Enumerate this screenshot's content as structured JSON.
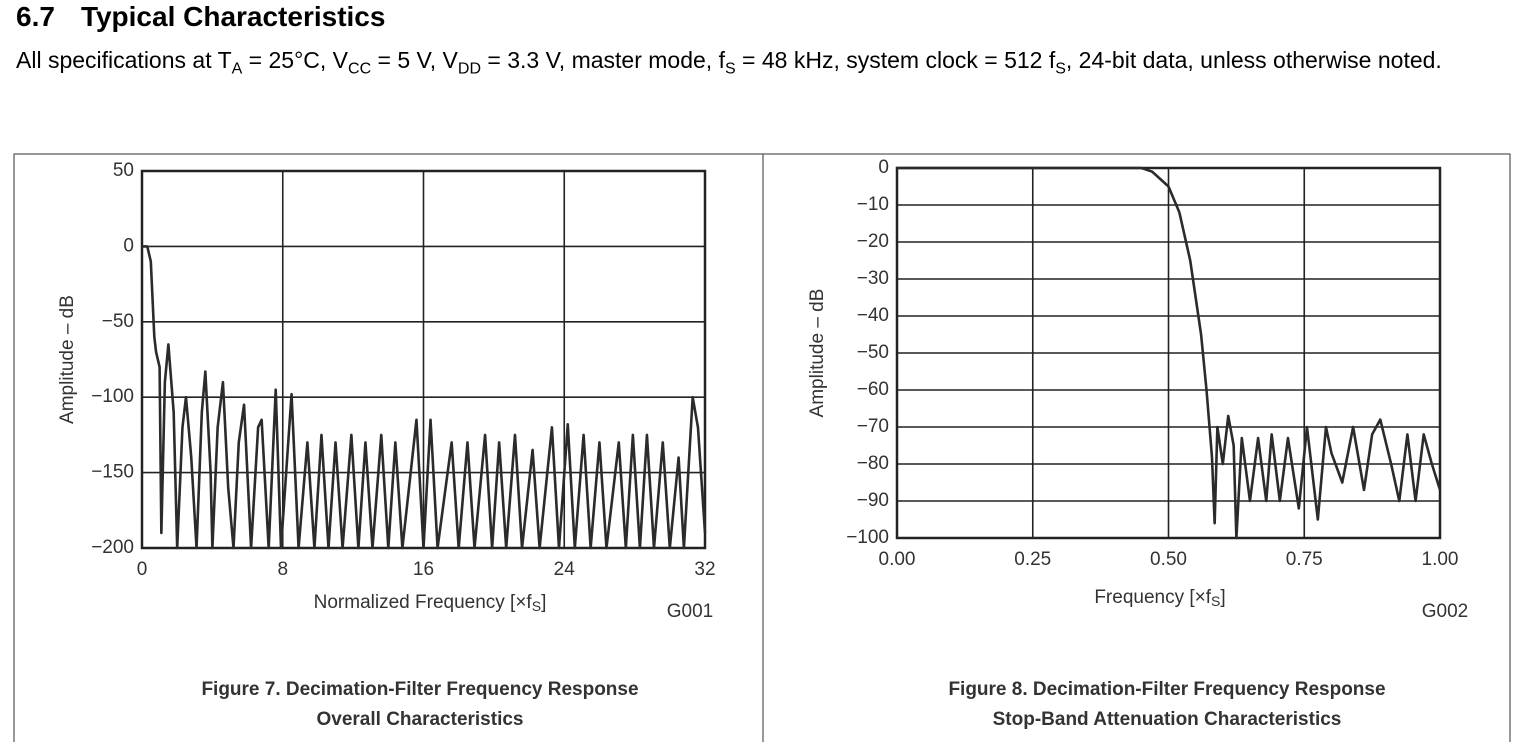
{
  "section": "6.7",
  "title": "Typical Characteristics",
  "intro": [
    {
      "text": "All specifications at T"
    },
    {
      "sub": "A"
    },
    {
      "text": " = 25°C, V"
    },
    {
      "sub": "CC"
    },
    {
      "text": " = 5 V, V"
    },
    {
      "sub": "DD"
    },
    {
      "text": " = 3.3 V, master mode, f"
    },
    {
      "sub": "S"
    },
    {
      "text": " = 48 kHz, system clock = 512 f"
    },
    {
      "sub": "S"
    },
    {
      "text": ", 24-bit data, unless otherwise noted."
    }
  ],
  "chart_data": [
    {
      "type": "line",
      "ylabel": "Amplitude – dB",
      "xlabel": [
        {
          "text": "Normalized Frequency [×f"
        },
        {
          "sub": "S"
        },
        {
          "text": "]"
        }
      ],
      "code": "G001",
      "caption": [
        "Figure 7. Decimation-Filter Frequency Response",
        "Overall Characteristics"
      ],
      "xlim": [
        0,
        32
      ],
      "xticks": [
        0,
        8,
        16,
        24,
        32
      ],
      "ylim": [
        -200,
        50
      ],
      "yticks": [
        {
          "value": 50,
          "label": "50"
        },
        {
          "value": 0,
          "label": "0"
        },
        {
          "value": -50,
          "label": "−50"
        },
        {
          "value": -100,
          "label": "−100"
        },
        {
          "value": -150,
          "label": "−150"
        },
        {
          "value": -200,
          "label": "−200"
        }
      ],
      "grid": true,
      "color": "#2b2b2b",
      "x": [
        0,
        0.3,
        0.5,
        0.7,
        0.8,
        1.0,
        1.1,
        1.3,
        1.5,
        1.8,
        2.0,
        2.3,
        2.5,
        2.8,
        3.1,
        3.4,
        3.6,
        3.9,
        4.0,
        4.3,
        4.6,
        4.9,
        5.2,
        5.5,
        5.8,
        6.2,
        6.6,
        6.8,
        7.2,
        7.6,
        7.9,
        8.5,
        8.9,
        9.4,
        9.8,
        10.2,
        10.6,
        11.0,
        11.4,
        11.9,
        12.3,
        12.7,
        13.1,
        13.6,
        14.0,
        14.4,
        14.8,
        15.6,
        16.0,
        16.4,
        16.8,
        17.6,
        18.0,
        18.5,
        18.9,
        19.5,
        19.9,
        20.3,
        20.7,
        21.2,
        21.6,
        22.2,
        22.6,
        23.3,
        23.7,
        24.2,
        24.6,
        25.1,
        25.5,
        26.0,
        26.4,
        27.1,
        27.5,
        27.9,
        28.3,
        28.7,
        29.1,
        29.6,
        30.0,
        30.5,
        30.8,
        31.3,
        31.6,
        32.0
      ],
      "values": [
        0,
        0,
        -10,
        -60,
        -70,
        -80,
        -190,
        -90,
        -65,
        -110,
        -200,
        -120,
        -100,
        -140,
        -200,
        -110,
        -83,
        -150,
        -200,
        -120,
        -90,
        -160,
        -200,
        -130,
        -105,
        -200,
        -120,
        -115,
        -200,
        -95,
        -200,
        -98,
        -200,
        -130,
        -200,
        -125,
        -200,
        -130,
        -200,
        -125,
        -200,
        -130,
        -200,
        -125,
        -200,
        -130,
        -200,
        -115,
        -200,
        -115,
        -200,
        -130,
        -200,
        -130,
        -200,
        -125,
        -200,
        -130,
        -200,
        -125,
        -200,
        -135,
        -200,
        -120,
        -200,
        -118,
        -200,
        -125,
        -200,
        -130,
        -200,
        -130,
        -200,
        -125,
        -200,
        -125,
        -200,
        -130,
        -200,
        -140,
        -200,
        -100,
        -120,
        -190
      ]
    },
    {
      "type": "line",
      "ylabel": "Amplitude – dB",
      "xlabel": [
        {
          "text": "Frequency [×f"
        },
        {
          "sub": "S"
        },
        {
          "text": "]"
        }
      ],
      "code": "G002",
      "caption": [
        "Figure 8. Decimation-Filter Frequency Response",
        "Stop-Band Attenuation Characteristics"
      ],
      "xlim": [
        0,
        1
      ],
      "xticks": [
        {
          "value": 0,
          "label": "0.00"
        },
        {
          "value": 0.25,
          "label": "0.25"
        },
        {
          "value": 0.5,
          "label": "0.50"
        },
        {
          "value": 0.75,
          "label": "0.75"
        },
        {
          "value": 1,
          "label": "1.00"
        }
      ],
      "ylim": [
        -100,
        0
      ],
      "yticks": [
        {
          "value": 0,
          "label": "0"
        },
        {
          "value": -10,
          "label": "−10"
        },
        {
          "value": -20,
          "label": "−20"
        },
        {
          "value": -30,
          "label": "−30"
        },
        {
          "value": -40,
          "label": "−40"
        },
        {
          "value": -50,
          "label": "−50"
        },
        {
          "value": -60,
          "label": "−60"
        },
        {
          "value": -70,
          "label": "−70"
        },
        {
          "value": -80,
          "label": "−80"
        },
        {
          "value": -90,
          "label": "−90"
        },
        {
          "value": -100,
          "label": "−100"
        }
      ],
      "grid": true,
      "color": "#2b2b2b",
      "x": [
        0,
        0.1,
        0.2,
        0.3,
        0.4,
        0.45,
        0.47,
        0.5,
        0.52,
        0.54,
        0.56,
        0.57,
        0.58,
        0.585,
        0.59,
        0.6,
        0.61,
        0.62,
        0.625,
        0.635,
        0.65,
        0.665,
        0.68,
        0.69,
        0.705,
        0.72,
        0.74,
        0.755,
        0.775,
        0.79,
        0.8,
        0.82,
        0.84,
        0.86,
        0.875,
        0.89,
        0.91,
        0.925,
        0.94,
        0.955,
        0.97,
        0.985,
        1.0
      ],
      "values": [
        0,
        0,
        0,
        0,
        0,
        0,
        -1,
        -5,
        -12,
        -25,
        -45,
        -60,
        -78,
        -96,
        -70,
        -80,
        -67,
        -75,
        -100,
        -73,
        -90,
        -73,
        -90,
        -72,
        -90,
        -73,
        -92,
        -70,
        -95,
        -70,
        -77,
        -85,
        -70,
        -87,
        -72,
        -68,
        -80,
        -90,
        -72,
        -90,
        -72,
        -80,
        -87
      ]
    }
  ]
}
